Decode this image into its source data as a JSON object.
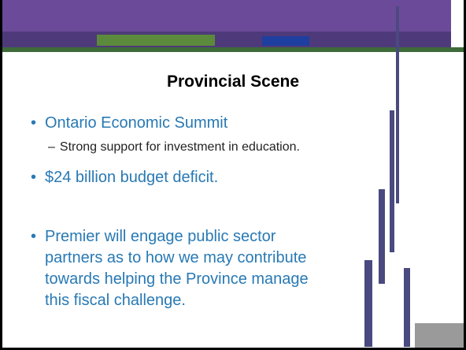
{
  "title": "Provincial Scene",
  "bullets": [
    {
      "text": "Ontario Economic Summit",
      "sub": [
        "Strong support for investment in education."
      ]
    },
    {
      "text": "$24 billion budget deficit."
    },
    {
      "text": "Premier will engage public sector partners as to how we may contribute towards helping the Province manage this fiscal challenge."
    }
  ]
}
